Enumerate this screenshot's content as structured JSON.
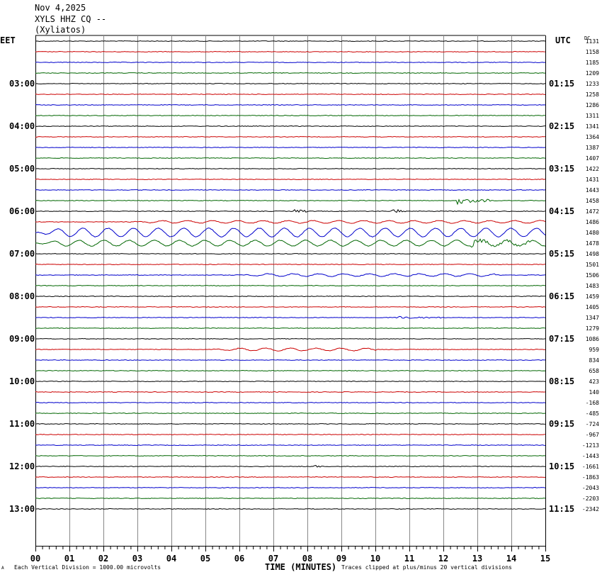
{
  "header": {
    "date": "Nov 4,2025",
    "station": "XYLS HHZ CQ --",
    "location": "(Xyliatos)"
  },
  "labels": {
    "left_zone": "EET",
    "right_zone": "UTC",
    "dc_header": "DC",
    "x_axis_title": "TIME (MINUTES)",
    "scale_note": "Each Vertical Division = 1000.00 microvolts",
    "clip_note": "Traces clipped at plus/minus 20 vertical divisions",
    "corner_mark": "A"
  },
  "colors": {
    "trace_cycle": [
      "#000000",
      "#cc0000",
      "#0000cc",
      "#006600"
    ],
    "grid": "#888888"
  },
  "chart_data": {
    "type": "line",
    "subtype": "helicorder",
    "x_ticks": [
      "00",
      "01",
      "02",
      "03",
      "04",
      "05",
      "06",
      "07",
      "08",
      "09",
      "10",
      "11",
      "12",
      "13",
      "14",
      "15"
    ],
    "xlim": [
      0,
      15
    ],
    "minutes_per_line": 15,
    "left_hour_labels": [
      {
        "row": 4,
        "label": "03:00"
      },
      {
        "row": 8,
        "label": "04:00"
      },
      {
        "row": 12,
        "label": "05:00"
      },
      {
        "row": 16,
        "label": "06:00"
      },
      {
        "row": 20,
        "label": "07:00"
      },
      {
        "row": 24,
        "label": "08:00"
      },
      {
        "row": 28,
        "label": "09:00"
      },
      {
        "row": 32,
        "label": "10:00"
      },
      {
        "row": 36,
        "label": "11:00"
      },
      {
        "row": 40,
        "label": "12:00"
      },
      {
        "row": 44,
        "label": "13:00"
      }
    ],
    "right_hour_labels": [
      {
        "row": 4,
        "label": "01:15"
      },
      {
        "row": 8,
        "label": "02:15"
      },
      {
        "row": 12,
        "label": "03:15"
      },
      {
        "row": 16,
        "label": "04:15"
      },
      {
        "row": 20,
        "label": "05:15"
      },
      {
        "row": 24,
        "label": "06:15"
      },
      {
        "row": 28,
        "label": "07:15"
      },
      {
        "row": 32,
        "label": "08:15"
      },
      {
        "row": 36,
        "label": "09:15"
      },
      {
        "row": 40,
        "label": "10:15"
      },
      {
        "row": 44,
        "label": "11:15"
      }
    ],
    "dc_offsets": [
      "1131",
      "1158",
      "1185",
      "1209",
      "1233",
      "1258",
      "1286",
      "1311",
      "1341",
      "1364",
      "1387",
      "1407",
      "1422",
      "1431",
      "1443",
      "1458",
      "1472",
      "1486",
      "1480",
      "1478",
      "1498",
      "1501",
      "1506",
      "1483",
      "1459",
      "1405",
      "1347",
      "1279",
      "1086",
      "959",
      "834",
      "658",
      "423",
      "140",
      "-168",
      "-485",
      "-724",
      "-967",
      "-1213",
      "-1443",
      "-1661",
      "-1863",
      "-2043",
      "-2203",
      "-2342"
    ],
    "events": [
      {
        "row": 15,
        "start_min": 12.4,
        "end_min": 13.4,
        "amplitude": "medium",
        "kind": "burst"
      },
      {
        "row": 16,
        "start_min": 7.6,
        "end_min": 8.0,
        "amplitude": "small",
        "kind": "burst"
      },
      {
        "row": 16,
        "start_min": 10.5,
        "end_min": 10.9,
        "amplitude": "small",
        "kind": "burst"
      },
      {
        "row": 17,
        "start_min": 2.8,
        "end_min": 15,
        "amplitude": "small",
        "kind": "swell"
      },
      {
        "row": 18,
        "start_min": 0,
        "end_min": 15,
        "amplitude": "large",
        "kind": "swell"
      },
      {
        "row": 19,
        "start_min": 0,
        "end_min": 15,
        "amplitude": "medium",
        "kind": "swell"
      },
      {
        "row": 19,
        "start_min": 12.8,
        "end_min": 14.6,
        "amplitude": "medium",
        "kind": "burst"
      },
      {
        "row": 22,
        "start_min": 6.0,
        "end_min": 13.5,
        "amplitude": "small",
        "kind": "swell"
      },
      {
        "row": 26,
        "start_min": 10.6,
        "end_min": 12.0,
        "amplitude": "small",
        "kind": "burst"
      },
      {
        "row": 29,
        "start_min": 5.0,
        "end_min": 10.0,
        "amplitude": "small",
        "kind": "swell"
      },
      {
        "row": 40,
        "start_min": 8.2,
        "end_min": 8.4,
        "amplitude": "small",
        "kind": "burst"
      }
    ]
  }
}
